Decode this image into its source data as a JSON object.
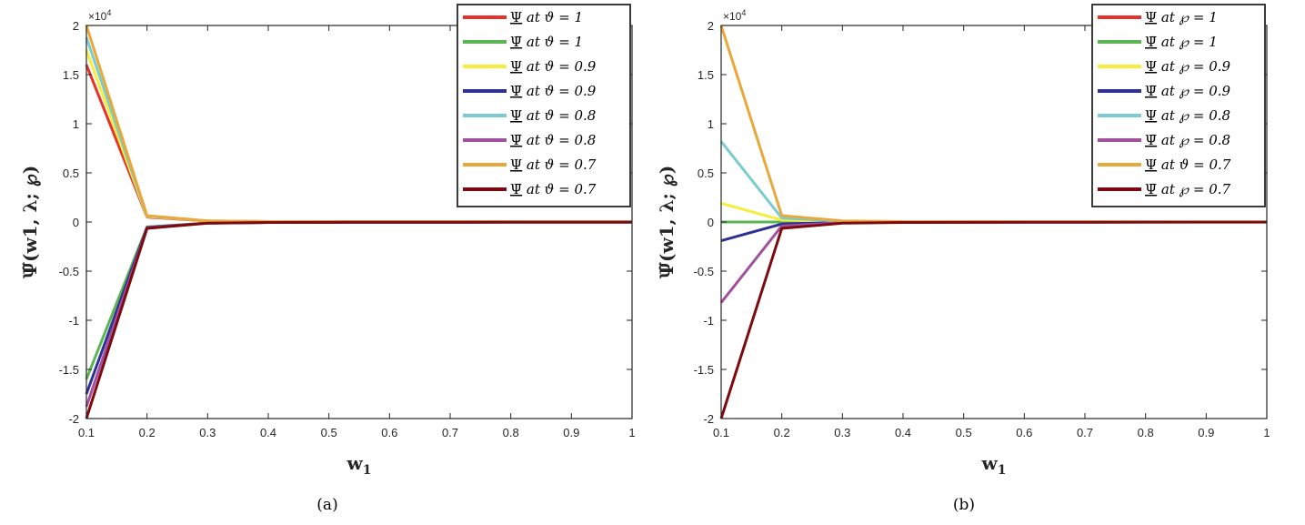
{
  "chart_data": [
    {
      "id": "a",
      "type": "line",
      "caption": "(a)",
      "xlabel": "w1",
      "ylabel": "Ψ̃(w1, λ; ℘)",
      "y_multiplier": "×10^4",
      "xlim": [
        0.1,
        1
      ],
      "ylim": [
        -2,
        2
      ],
      "xticks": [
        "0.1",
        "0.2",
        "0.3",
        "0.4",
        "0.5",
        "0.6",
        "0.7",
        "0.8",
        "0.9",
        "1"
      ],
      "yticks": [
        "-2",
        "-1.5",
        "-1",
        "-0.5",
        "0",
        "0.5",
        "1",
        "1.5",
        "2"
      ],
      "legend_position": "top-right",
      "grid": false,
      "x": [
        0.1,
        0.2,
        0.3,
        0.4,
        0.5,
        0.6,
        0.7,
        0.8,
        0.9,
        1.0
      ],
      "series": [
        {
          "name": "Ψ at ϑ = 1",
          "color": "#e8312a",
          "values": [
            1.6,
            0.05,
            0.01,
            0.005,
            0.003,
            0.002,
            0.002,
            0.001,
            0.001,
            0.001
          ]
        },
        {
          "name": "Ψ̄ at ϑ = 1",
          "color": "#5ab552",
          "values": [
            -1.6,
            -0.05,
            -0.01,
            -0.005,
            -0.003,
            -0.002,
            -0.002,
            -0.001,
            -0.001,
            -0.001
          ]
        },
        {
          "name": "Ψ at ϑ = 0.9",
          "color": "#f7ee3b",
          "values": [
            1.75,
            0.055,
            0.011,
            0.005,
            0.003,
            0.002,
            0.002,
            0.001,
            0.001,
            0.001
          ]
        },
        {
          "name": "Ψ̄ at ϑ = 0.9",
          "color": "#2e3192",
          "values": [
            -1.75,
            -0.055,
            -0.011,
            -0.005,
            -0.003,
            -0.002,
            -0.002,
            -0.001,
            -0.001,
            -0.001
          ]
        },
        {
          "name": "Ψ at ϑ = 0.8",
          "color": "#7ccbd0",
          "values": [
            1.88,
            0.06,
            0.012,
            0.005,
            0.003,
            0.002,
            0.002,
            0.001,
            0.001,
            0.001
          ]
        },
        {
          "name": "Ψ̄ at ϑ = 0.8",
          "color": "#a0509f",
          "values": [
            -1.88,
            -0.06,
            -0.012,
            -0.005,
            -0.003,
            -0.002,
            -0.002,
            -0.001,
            -0.001,
            -0.001
          ]
        },
        {
          "name": "Ψ at ϑ = 0.7",
          "color": "#e8a93a",
          "values": [
            2.0,
            0.065,
            0.012,
            0.005,
            0.003,
            0.002,
            0.002,
            0.001,
            0.001,
            0.001
          ]
        },
        {
          "name": "Ψ̄ at ϑ = 0.7",
          "color": "#7d0a0f",
          "values": [
            -2.0,
            -0.065,
            -0.012,
            -0.005,
            -0.003,
            -0.002,
            -0.002,
            -0.001,
            -0.001,
            -0.001
          ]
        }
      ]
    },
    {
      "id": "b",
      "type": "line",
      "caption": "(b)",
      "xlabel": "w1",
      "ylabel": "Ψ̃(w1, λ; ℘)",
      "y_multiplier": "×10^4",
      "xlim": [
        0.1,
        1
      ],
      "ylim": [
        -2,
        2
      ],
      "xticks": [
        "0.1",
        "0.2",
        "0.3",
        "0.4",
        "0.5",
        "0.6",
        "0.7",
        "0.8",
        "0.9",
        "1"
      ],
      "yticks": [
        "-2",
        "-1.5",
        "-1",
        "-0.5",
        "0",
        "0.5",
        "1",
        "1.5",
        "2"
      ],
      "legend_position": "top-right",
      "grid": false,
      "x": [
        0.1,
        0.2,
        0.3,
        0.4,
        0.5,
        0.6,
        0.7,
        0.8,
        0.9,
        1.0
      ],
      "series": [
        {
          "name": "Ψ at ℘ = 1",
          "color": "#e8312a",
          "values": [
            0.0,
            0.0,
            0.0,
            0.0,
            0.0,
            0.0,
            0.0,
            0.0,
            0.0,
            0.0
          ]
        },
        {
          "name": "Ψ̄ at ℘ = 1",
          "color": "#5ab552",
          "values": [
            0.0,
            0.0,
            0.0,
            0.0,
            0.0,
            0.0,
            0.0,
            0.0,
            0.0,
            0.0
          ]
        },
        {
          "name": "Ψ at ℘ = 0.9",
          "color": "#f7ee3b",
          "values": [
            0.19,
            0.02,
            0.005,
            0.002,
            0.001,
            0.001,
            0.001,
            0.0,
            0.0,
            0.0
          ]
        },
        {
          "name": "Ψ̄ at ℘ = 0.9",
          "color": "#2e3192",
          "values": [
            -0.19,
            -0.02,
            -0.005,
            -0.002,
            -0.001,
            -0.001,
            -0.001,
            0.0,
            0.0,
            0.0
          ]
        },
        {
          "name": "Ψ at ℘ = 0.8",
          "color": "#7ccbd0",
          "values": [
            0.82,
            0.04,
            0.008,
            0.003,
            0.002,
            0.001,
            0.001,
            0.001,
            0.0,
            0.0
          ]
        },
        {
          "name": "Ψ̄ at ℘ = 0.8",
          "color": "#a0509f",
          "values": [
            -0.82,
            -0.04,
            -0.008,
            -0.003,
            -0.002,
            -0.001,
            -0.001,
            -0.001,
            0.0,
            0.0
          ]
        },
        {
          "name": "Ψ at ϑ = 0.7",
          "color": "#e8a93a",
          "values": [
            2.0,
            0.065,
            0.012,
            0.005,
            0.003,
            0.002,
            0.002,
            0.001,
            0.001,
            0.001
          ]
        },
        {
          "name": "Ψ̄ at ℘ = 0.7",
          "color": "#7d0a0f",
          "values": [
            -2.0,
            -0.065,
            -0.012,
            -0.005,
            -0.003,
            -0.002,
            -0.002,
            -0.001,
            -0.001,
            -0.001
          ]
        }
      ]
    }
  ]
}
